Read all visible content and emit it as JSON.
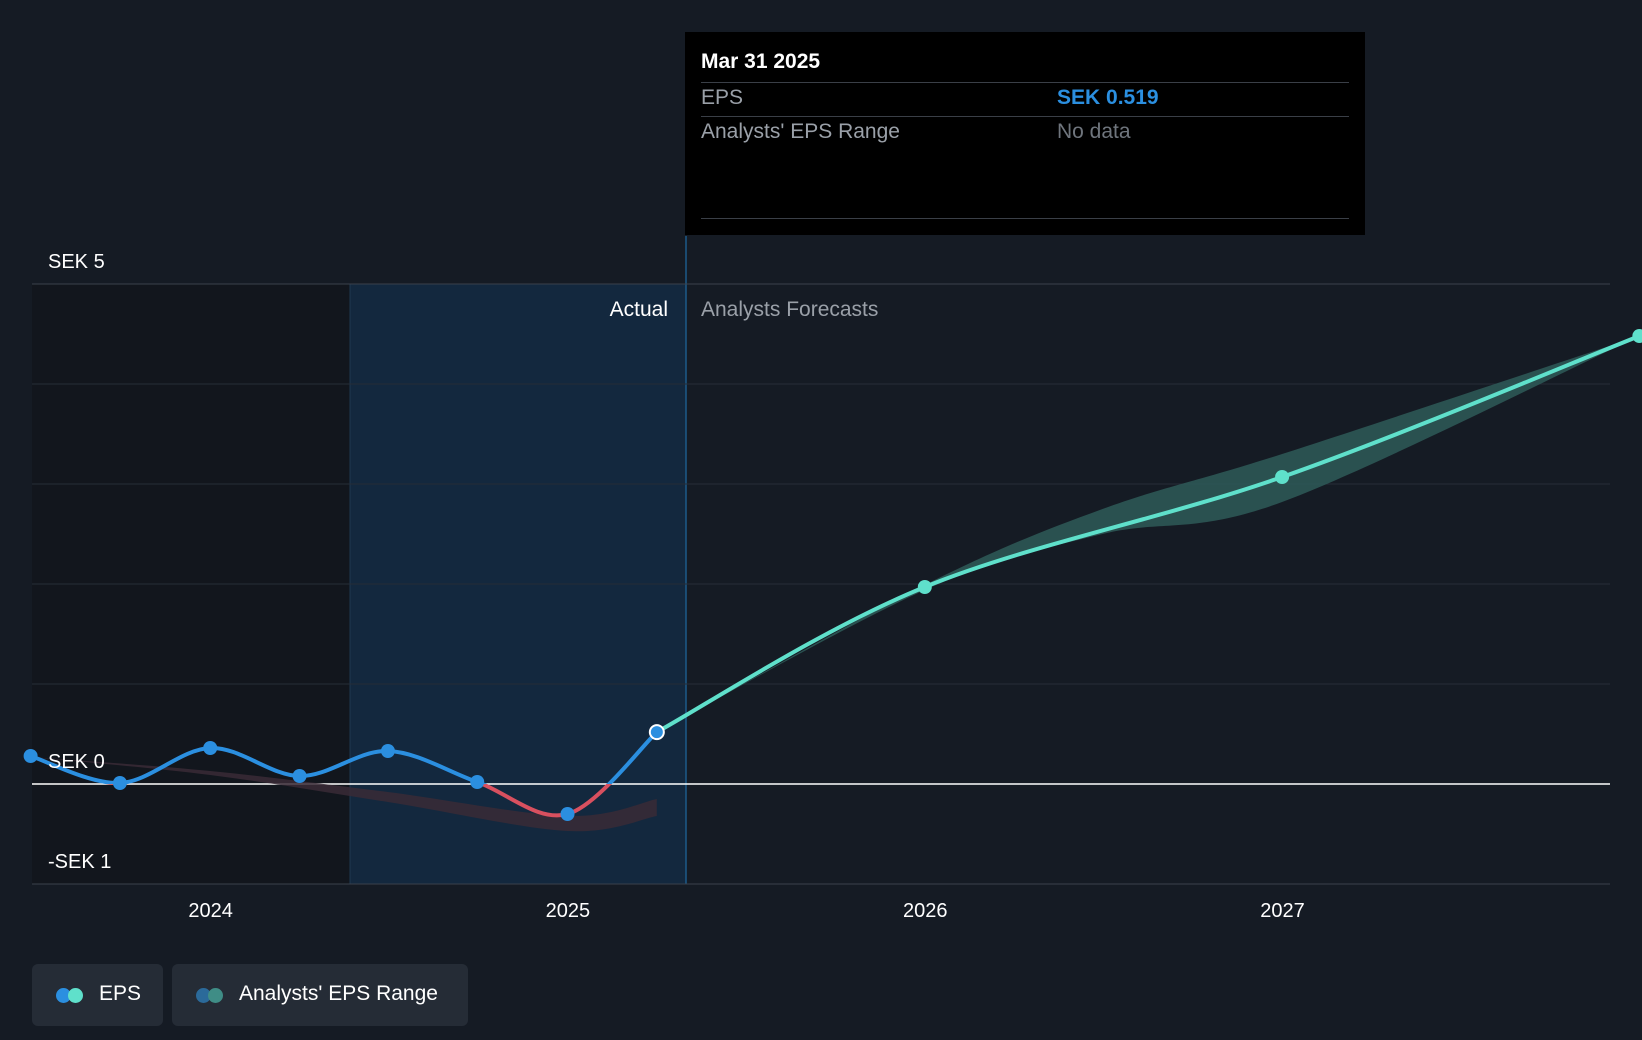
{
  "chart_data": {
    "type": "line",
    "title": "",
    "xlabel": "",
    "ylabel": "",
    "x_ticks": [
      "2024",
      "2025",
      "2026",
      "2027"
    ],
    "y_ticks": [
      {
        "value": 5,
        "label": "SEK 5"
      },
      {
        "value": 0,
        "label": "SEK 0"
      },
      {
        "value": -1,
        "label": "-SEK 1"
      }
    ],
    "ylim": [
      -1,
      5
    ],
    "xlim": [
      "2023-07",
      "2027-12"
    ],
    "region_labels": {
      "actual": "Actual",
      "forecast": "Analysts Forecasts"
    },
    "series": [
      {
        "name": "EPS",
        "kind": "actual",
        "color": "#2b8fe0",
        "negative_color": "#d8505f",
        "points": [
          {
            "x": "2023-06-30",
            "y": 0.28
          },
          {
            "x": "2023-09-30",
            "y": 0.01
          },
          {
            "x": "2023-12-31",
            "y": 0.36
          },
          {
            "x": "2024-03-31",
            "y": 0.08
          },
          {
            "x": "2024-06-30",
            "y": 0.33
          },
          {
            "x": "2024-09-30",
            "y": 0.02
          },
          {
            "x": "2024-12-31",
            "y": -0.3
          },
          {
            "x": "2025-03-31",
            "y": 0.519
          }
        ]
      },
      {
        "name": "EPS",
        "kind": "forecast",
        "color": "#5fe0cb",
        "points": [
          {
            "x": "2025-03-31",
            "y": 0.519
          },
          {
            "x": "2025-12-31",
            "y": 1.97
          },
          {
            "x": "2026-12-31",
            "y": 3.07
          },
          {
            "x": "2027-12-31",
            "y": 4.48
          }
        ]
      }
    ],
    "range_band": {
      "name": "Analysts' EPS Range",
      "past_color": "#3a2a36",
      "forecast_color": "#2e5a58",
      "past": [
        {
          "x": "2023-06-30",
          "lo": 0.27,
          "hi": 0.27
        },
        {
          "x": "2023-12-31",
          "lo": 0.09,
          "hi": 0.13
        },
        {
          "x": "2024-06-30",
          "lo": -0.18,
          "hi": -0.08
        },
        {
          "x": "2024-12-31",
          "lo": -0.47,
          "hi": -0.32
        },
        {
          "x": "2025-03-31",
          "lo": -0.32,
          "hi": -0.15
        }
      ],
      "forecast": [
        {
          "x": "2025-03-31",
          "lo": 0.519,
          "hi": 0.519
        },
        {
          "x": "2025-12-31",
          "lo": 1.94,
          "hi": 1.99
        },
        {
          "x": "2026-06-30",
          "lo": 2.5,
          "hi": 2.75
        },
        {
          "x": "2026-12-31",
          "lo": 2.82,
          "hi": 3.3
        },
        {
          "x": "2027-12-31",
          "lo": 4.48,
          "hi": 4.48
        }
      ]
    },
    "tooltip": {
      "date": "Mar 31 2025",
      "rows": [
        {
          "key": "EPS",
          "value": "SEK 0.519",
          "value_color": "#2b8fe0"
        },
        {
          "key": "Analysts' EPS Range",
          "value": "No data",
          "value_color": "#6f757d"
        }
      ]
    },
    "legend": [
      {
        "label": "EPS",
        "colors": [
          "#2b8fe0",
          "#5fe0cb"
        ]
      },
      {
        "label": "Analysts' EPS Range",
        "colors": [
          "#2b6a9a",
          "#3f8d86"
        ]
      }
    ]
  }
}
